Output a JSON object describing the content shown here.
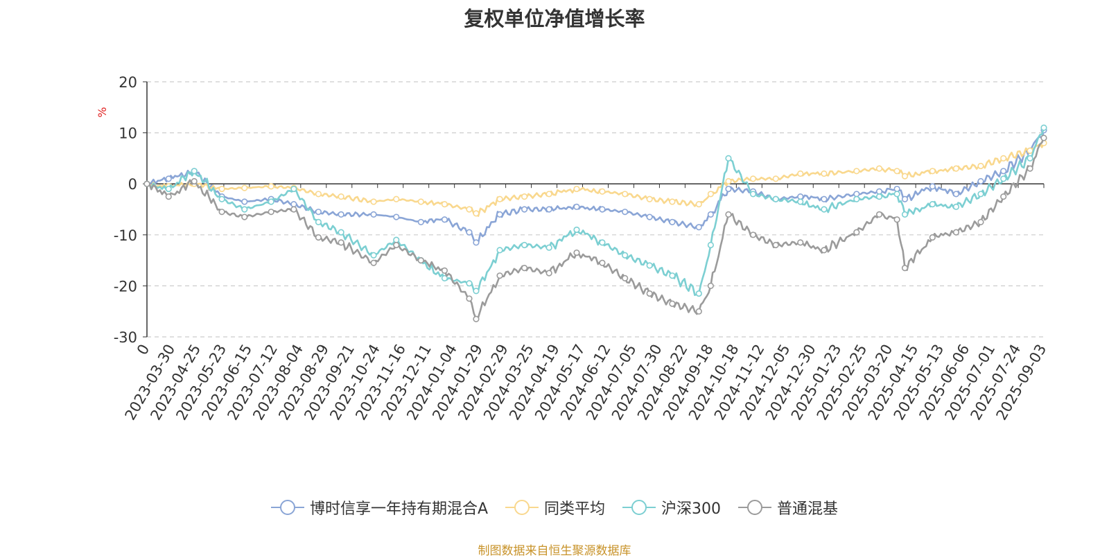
{
  "chart_data": {
    "type": "line",
    "title": "复权单位净值增长率",
    "ylabel": "%",
    "ylim": [
      -30,
      20
    ],
    "yticks": [
      20,
      10,
      0,
      -10,
      -20,
      -30
    ],
    "x_start_label": "0",
    "x_tick_labels": [
      "2023-03-30",
      "2023-04-25",
      "2023-05-23",
      "2023-06-15",
      "2023-07-12",
      "2023-08-04",
      "2023-08-29",
      "2023-09-21",
      "2023-10-24",
      "2023-11-16",
      "2023-12-11",
      "2024-01-04",
      "2024-01-29",
      "2024-02-29",
      "2024-03-25",
      "2024-04-19",
      "2024-05-17",
      "2024-06-12",
      "2024-07-05",
      "2024-07-30",
      "2024-08-22",
      "2024-09-18",
      "2024-10-18",
      "2024-11-12",
      "2024-12-05",
      "2024-12-30",
      "2025-01-23",
      "2025-02-25",
      "2025-03-20",
      "2025-04-15",
      "2025-05-13",
      "2025-06-06",
      "2025-07-01",
      "2025-07-24",
      "2025-09-03"
    ],
    "grid": "horizontal-dashed",
    "legend_position": "bottom",
    "x": [
      "2023-03-08",
      "2023-03-30",
      "2023-04-25",
      "2023-05-23",
      "2023-06-15",
      "2023-07-12",
      "2023-08-04",
      "2023-08-29",
      "2023-09-21",
      "2023-10-24",
      "2023-11-16",
      "2023-12-11",
      "2024-01-04",
      "2024-01-29",
      "2024-02-05",
      "2024-02-29",
      "2024-03-25",
      "2024-04-19",
      "2024-05-17",
      "2024-06-12",
      "2024-07-05",
      "2024-07-30",
      "2024-08-22",
      "2024-09-18",
      "2024-09-30",
      "2024-10-18",
      "2024-11-12",
      "2024-12-05",
      "2024-12-30",
      "2025-01-23",
      "2025-02-25",
      "2025-03-20",
      "2025-04-07",
      "2025-04-15",
      "2025-05-13",
      "2025-06-06",
      "2025-07-01",
      "2025-07-24",
      "2025-08-20",
      "2025-09-03"
    ],
    "series": [
      {
        "name": "博时信享一年持有期混合A",
        "color": "#8aa5d6",
        "values": [
          0,
          1.0,
          2.5,
          -2.5,
          -3.5,
          -3.0,
          -4.0,
          -5.5,
          -6.0,
          -6.0,
          -6.5,
          -7.5,
          -7.0,
          -9.5,
          -11.5,
          -6.0,
          -5.0,
          -5.0,
          -4.5,
          -5.0,
          -5.5,
          -6.5,
          -7.5,
          -8.5,
          -6.0,
          -1.0,
          -1.5,
          -3.0,
          -2.5,
          -3.0,
          -2.0,
          -1.5,
          -1.0,
          -3.0,
          -0.5,
          -2.0,
          0.5,
          2.5,
          6.5,
          10.5
        ]
      },
      {
        "name": "同类平均",
        "color": "#f9d88e",
        "values": [
          0,
          -0.5,
          0,
          -1.0,
          -0.8,
          -0.5,
          -0.8,
          -2.0,
          -2.5,
          -3.5,
          -3.0,
          -3.5,
          -4.0,
          -5.0,
          -5.8,
          -3.0,
          -2.5,
          -2.0,
          -1.0,
          -1.5,
          -2.0,
          -3.0,
          -3.5,
          -4.0,
          -2.0,
          0.5,
          1.0,
          1.0,
          2.0,
          2.0,
          2.5,
          3.0,
          2.5,
          1.5,
          2.5,
          3.0,
          3.5,
          5.0,
          6.5,
          8.0
        ]
      },
      {
        "name": "沪深300",
        "color": "#7ccfd2",
        "values": [
          0,
          -1.0,
          2.5,
          -3.0,
          -5.0,
          -3.5,
          -1.0,
          -7.5,
          -9.5,
          -14.0,
          -11.0,
          -15.0,
          -18.5,
          -19.5,
          -21.0,
          -13.0,
          -12.0,
          -12.5,
          -9.0,
          -11.5,
          -14.0,
          -16.0,
          -18.0,
          -21.5,
          -12.0,
          5.0,
          -2.0,
          -3.0,
          -3.5,
          -5.0,
          -3.0,
          -2.5,
          -2.0,
          -6.0,
          -4.0,
          -4.5,
          -2.0,
          1.0,
          5.0,
          11.0
        ]
      },
      {
        "name": "普通混基",
        "color": "#9b9b9b",
        "values": [
          0,
          -2.5,
          0.5,
          -5.5,
          -6.5,
          -5.5,
          -5.0,
          -10.5,
          -11.5,
          -15.5,
          -12.0,
          -15.0,
          -17.0,
          -22.5,
          -26.5,
          -18.0,
          -16.5,
          -17.5,
          -13.5,
          -15.5,
          -18.5,
          -21.5,
          -23.5,
          -25.0,
          -20.0,
          -6.0,
          -10.0,
          -12.0,
          -11.5,
          -13.0,
          -9.5,
          -6.0,
          -7.0,
          -16.5,
          -10.5,
          -9.5,
          -7.5,
          -2.5,
          3.0,
          9.0
        ]
      }
    ]
  },
  "source_note": "制图数据来自恒生聚源数据库"
}
